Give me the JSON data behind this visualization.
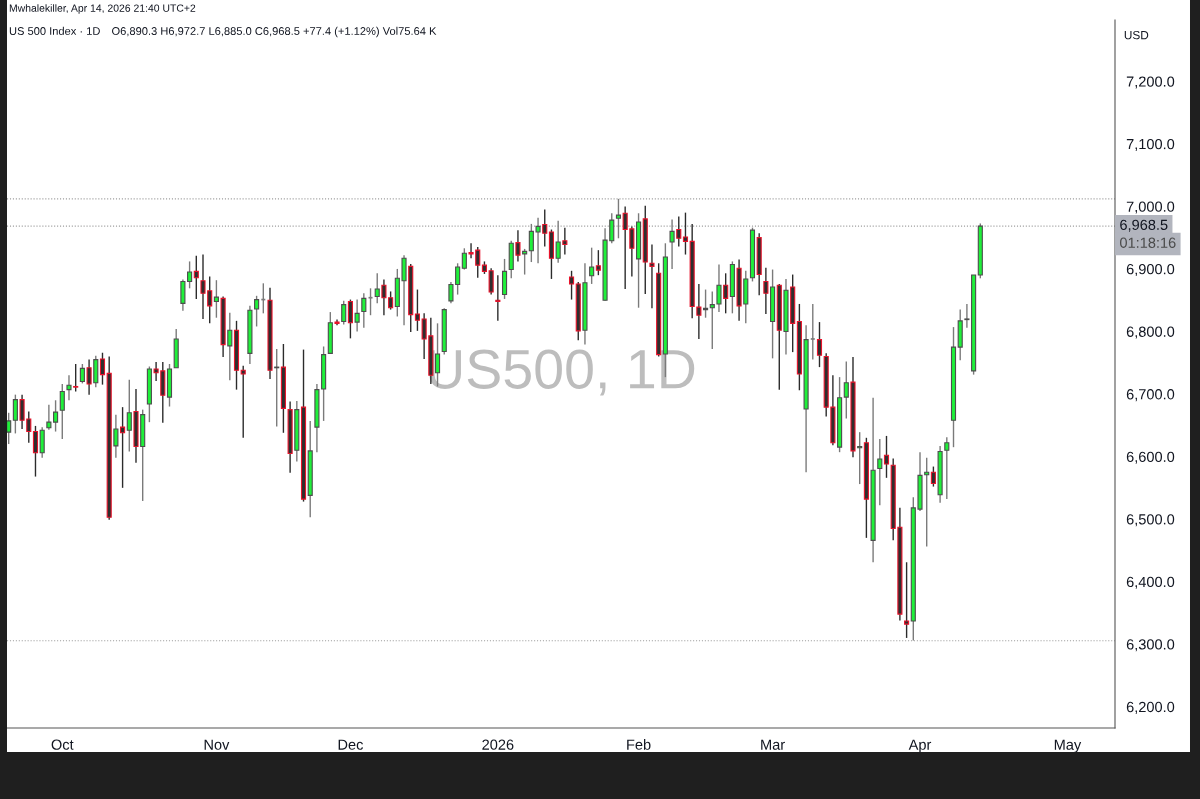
{
  "chart_data": {
    "type": "candlestick",
    "title": "US 500 Index · 1D",
    "subtitle": "O6,890.3 H6,972.7 L6,885.0 C6,968.5 +77.4 (+1.12%) Vol75.64 K",
    "ylabel": "USD",
    "annotations": [
      "Mwhalekiller, Apr 14, 2026 21:40 UTC+2",
      "US500, 1D",
      "01:18:16"
    ],
    "categories": [
      null,
      null,
      null,
      null,
      null,
      null,
      null,
      null,
      "Oct",
      null,
      null,
      null,
      null,
      null,
      null,
      null,
      null,
      null,
      null,
      null,
      null,
      null,
      null,
      null,
      null,
      null,
      null,
      null,
      null,
      null,
      null,
      "Nov",
      null,
      null,
      null,
      null,
      null,
      null,
      null,
      null,
      null,
      null,
      null,
      null,
      null,
      null,
      null,
      null,
      null,
      null,
      null,
      "Dec",
      null,
      null,
      null,
      null,
      null,
      null,
      null,
      null,
      null,
      null,
      null,
      null,
      null,
      null,
      null,
      null,
      null,
      null,
      null,
      null,
      null,
      "2026",
      null,
      null,
      null,
      null,
      null,
      null,
      null,
      null,
      null,
      null,
      null,
      null,
      null,
      null,
      null,
      null,
      null,
      null,
      null,
      null,
      "Feb",
      null,
      null,
      null,
      null,
      null,
      null,
      null,
      null,
      null,
      null,
      null,
      null,
      null,
      null,
      null,
      null,
      null,
      null,
      null,
      "Mar",
      null,
      null,
      null,
      null,
      null,
      null,
      null,
      null,
      null,
      null,
      null,
      null,
      null,
      null,
      null,
      null,
      null,
      null,
      null,
      null,
      null,
      "Apr",
      null,
      null,
      null,
      null,
      null,
      null,
      null,
      null,
      null,
      null,
      null,
      null,
      null,
      null,
      null,
      null,
      null,
      null,
      null,
      null,
      null,
      "May",
      null,
      null,
      null,
      null,
      null,
      null,
      null
    ],
    "ohlc": [
      [
        6639,
        6670,
        6620,
        6657
      ],
      [
        6658,
        6699,
        6637,
        6691
      ],
      [
        6691,
        6699,
        6644,
        6658
      ],
      [
        6660,
        6672,
        6622,
        6640
      ],
      [
        6640,
        6649,
        6568,
        6606
      ],
      [
        6606,
        6647,
        6598,
        6642
      ],
      [
        6646,
        6683,
        6643,
        6655
      ],
      [
        6655,
        6690,
        6640,
        6671
      ],
      [
        6674,
        6716,
        6628,
        6704
      ],
      [
        6707,
        6730,
        6690,
        6714
      ],
      [
        6712,
        6748,
        6704,
        6711
      ],
      [
        6720,
        6748,
        6717,
        6741
      ],
      [
        6742,
        6755,
        6699,
        6716
      ],
      [
        6718,
        6761,
        6711,
        6755
      ],
      [
        6756,
        6766,
        6715,
        6731
      ],
      [
        6733,
        6760,
        6499,
        6503
      ],
      [
        6617,
        6667,
        6598,
        6644
      ],
      [
        6647,
        6679,
        6550,
        6638
      ],
      [
        6642,
        6723,
        6608,
        6670
      ],
      [
        6672,
        6708,
        6590,
        6616
      ],
      [
        6616,
        6675,
        6529,
        6667
      ],
      [
        6684,
        6744,
        6655,
        6740
      ],
      [
        6740,
        6751,
        6721,
        6734
      ],
      [
        6737,
        6751,
        6654,
        6698
      ],
      [
        6695,
        6748,
        6680,
        6740
      ],
      [
        6742,
        6804,
        6742,
        6788
      ],
      [
        6845,
        6883,
        6833,
        6880
      ],
      [
        6880,
        6912,
        6869,
        6895
      ],
      [
        6896,
        6921,
        6852,
        6886
      ],
      [
        6881,
        6923,
        6820,
        6861
      ],
      [
        6865,
        6888,
        6813,
        6841
      ],
      [
        6848,
        6882,
        6822,
        6855
      ],
      [
        6853,
        6856,
        6759,
        6779
      ],
      [
        6777,
        6830,
        6722,
        6802
      ],
      [
        6802,
        6817,
        6707,
        6738
      ],
      [
        6738,
        6745,
        6630,
        6732
      ],
      [
        6765,
        6841,
        6748,
        6834
      ],
      [
        6836,
        6857,
        6808,
        6851
      ],
      [
        6851,
        6877,
        6829,
        6851
      ],
      [
        6850,
        6870,
        6724,
        6738
      ],
      [
        6742,
        6772,
        6648,
        6743
      ],
      [
        6743,
        6780,
        6638,
        6677
      ],
      [
        6675,
        6688,
        6574,
        6605
      ],
      [
        6610,
        6689,
        6592,
        6675
      ],
      [
        6679,
        6771,
        6528,
        6532
      ],
      [
        6538,
        6657,
        6503,
        6609
      ],
      [
        6647,
        6716,
        6607,
        6707
      ],
      [
        6708,
        6776,
        6657,
        6763
      ],
      [
        6765,
        6831,
        6764,
        6814
      ],
      [
        6815,
        6819,
        6810,
        6813
      ],
      [
        6816,
        6849,
        6811,
        6843
      ],
      [
        6848,
        6851,
        6789,
        6814
      ],
      [
        6815,
        6851,
        6800,
        6829
      ],
      [
        6832,
        6861,
        6806,
        6853
      ],
      [
        6854,
        6869,
        6826,
        6854
      ],
      [
        6856,
        6893,
        6845,
        6868
      ],
      [
        6874,
        6883,
        6826,
        6854
      ],
      [
        6854,
        6864,
        6835,
        6838
      ],
      [
        6840,
        6900,
        6824,
        6885
      ],
      [
        6881,
        6922,
        6810,
        6917
      ],
      [
        6904,
        6908,
        6799,
        6827
      ],
      [
        6828,
        6867,
        6801,
        6818
      ],
      [
        6820,
        6829,
        6756,
        6788
      ],
      [
        6793,
        6822,
        6716,
        6730
      ],
      [
        6734,
        6813,
        6712,
        6764
      ],
      [
        6768,
        6837,
        6763,
        6835
      ],
      [
        6849,
        6879,
        6845,
        6875
      ],
      [
        6875,
        6909,
        6859,
        6903
      ],
      [
        6901,
        6933,
        6899,
        6925
      ],
      [
        6926,
        6941,
        6917,
        6924
      ],
      [
        6930,
        6935,
        6886,
        6906
      ],
      [
        6906,
        6912,
        6892,
        6896
      ],
      [
        6897,
        6901,
        6859,
        6863
      ],
      [
        6850,
        6890,
        6817,
        6848
      ],
      [
        6859,
        6916,
        6852,
        6896
      ],
      [
        6899,
        6945,
        6885,
        6941
      ],
      [
        6942,
        6962,
        6912,
        6922
      ],
      [
        6924,
        6932,
        6891,
        6928
      ],
      [
        6929,
        6972,
        6911,
        6960
      ],
      [
        6959,
        6982,
        6909,
        6968
      ],
      [
        6971,
        6995,
        6936,
        6957
      ],
      [
        6959,
        6963,
        6884,
        6917
      ],
      [
        6917,
        6977,
        6910,
        6943
      ],
      [
        6945,
        6966,
        6923,
        6939
      ],
      [
        6887,
        6897,
        6851,
        6876
      ],
      [
        6876,
        6879,
        6786,
        6801
      ],
      [
        6802,
        6909,
        6779,
        6878
      ],
      [
        6889,
        6934,
        6876,
        6903
      ],
      [
        6905,
        6930,
        6890,
        6898
      ],
      [
        6850,
        6965,
        6849,
        6946
      ],
      [
        6945,
        6989,
        6941,
        6978
      ],
      [
        6981,
        7012,
        6949,
        6986
      ],
      [
        6989,
        7000,
        6868,
        6963
      ],
      [
        6964,
        6968,
        6888,
        6933
      ],
      [
        6916,
        6989,
        6838,
        6975
      ],
      [
        6980,
        7001,
        6860,
        6911
      ],
      [
        6909,
        6939,
        6837,
        6904
      ],
      [
        6893,
        6909,
        6760,
        6763
      ],
      [
        6764,
        6941,
        6727,
        6919
      ],
      [
        6943,
        6979,
        6900,
        6960
      ],
      [
        6963,
        6984,
        6936,
        6949
      ],
      [
        6951,
        6990,
        6923,
        6944
      ],
      [
        6944,
        6972,
        6821,
        6840
      ],
      [
        6839,
        6876,
        6788,
        6826
      ],
      [
        6835,
        6867,
        6822,
        6837
      ],
      [
        6838,
        6864,
        6772,
        6843
      ],
      [
        6844,
        6907,
        6831,
        6874
      ],
      [
        6874,
        6893,
        6829,
        6853
      ],
      [
        6856,
        6912,
        6829,
        6907
      ],
      [
        6901,
        6915,
        6817,
        6841
      ],
      [
        6844,
        6897,
        6813,
        6884
      ],
      [
        6886,
        6966,
        6880,
        6962
      ],
      [
        6950,
        6957,
        6858,
        6891
      ],
      [
        6880,
        6902,
        6828,
        6861
      ],
      [
        6816,
        6899,
        6757,
        6871
      ],
      [
        6874,
        6876,
        6707,
        6802
      ],
      [
        6800,
        6884,
        6763,
        6866
      ],
      [
        6871,
        6891,
        6767,
        6813
      ],
      [
        6816,
        6844,
        6706,
        6732
      ],
      [
        6676,
        6810,
        6575,
        6787
      ],
      [
        6788,
        6844,
        6755,
        6788
      ],
      [
        6787,
        6815,
        6743,
        6762
      ],
      [
        6760,
        6765,
        6664,
        6679
      ],
      [
        6679,
        6730,
        6618,
        6622
      ],
      [
        6615,
        6727,
        6607,
        6694
      ],
      [
        6695,
        6752,
        6661,
        6718
      ],
      [
        6719,
        6759,
        6599,
        6609
      ],
      [
        6614,
        6639,
        6556,
        6616
      ],
      [
        6622,
        6630,
        6470,
        6532
      ],
      [
        6466,
        6694,
        6431,
        6578
      ],
      [
        6581,
        6628,
        6522,
        6596
      ],
      [
        6602,
        6633,
        6566,
        6588
      ],
      [
        6586,
        6597,
        6466,
        6485
      ],
      [
        6487,
        6518,
        6338,
        6348
      ],
      [
        6337,
        6431,
        6310,
        6332
      ],
      [
        6337,
        6535,
        6306,
        6518
      ],
      [
        6516,
        6607,
        6513,
        6570
      ],
      [
        6571,
        6598,
        6456,
        6575
      ],
      [
        6575,
        6584,
        6552,
        6557
      ],
      [
        6539,
        6617,
        6526,
        6608
      ],
      [
        6610,
        6631,
        6532,
        6622
      ],
      [
        6658,
        6807,
        6615,
        6775
      ],
      [
        6775,
        6835,
        6754,
        6817
      ],
      [
        6819,
        6844,
        6806,
        6820
      ],
      [
        6737,
        6890.3,
        6731,
        6890.3
      ],
      [
        6890.3,
        6972.7,
        6885.0,
        6968.5
      ],
      null,
      null,
      null,
      null,
      null,
      null,
      null,
      null,
      null,
      null,
      null,
      null,
      null,
      null,
      null,
      null,
      null,
      null,
      null,
      null
    ],
    "ylim": [
      6166,
      7298
    ],
    "yticks": [
      {
        "value": 6200,
        "label": "6,200.0"
      },
      {
        "value": 6300,
        "label": "6,300.0"
      },
      {
        "value": 6400,
        "label": "6,400.0"
      },
      {
        "value": 6500,
        "label": "6,500.0"
      },
      {
        "value": 6600,
        "label": "6,600.0"
      },
      {
        "value": 6700,
        "label": "6,700.0"
      },
      {
        "value": 6800,
        "label": "6,800.0"
      },
      {
        "value": 6900,
        "label": "6,900.0"
      },
      {
        "value": 7000,
        "label": "7,000.0"
      },
      {
        "value": 7100,
        "label": "7,100.0"
      },
      {
        "value": 7200,
        "label": "7,200.0"
      }
    ],
    "ref_lines": [
      {
        "axis": "y",
        "value": 7012,
        "color": "#9e9e9e",
        "line_style": "dotted"
      },
      {
        "axis": "y",
        "value": 6305.6,
        "color": "#9e9e9e",
        "line_style": "dotted"
      },
      {
        "axis": "y",
        "value": 6968.5,
        "label": "6,968.5",
        "color": "#9e9e9e",
        "line_style": "dotted"
      }
    ],
    "grid": false,
    "legend": false
  }
}
